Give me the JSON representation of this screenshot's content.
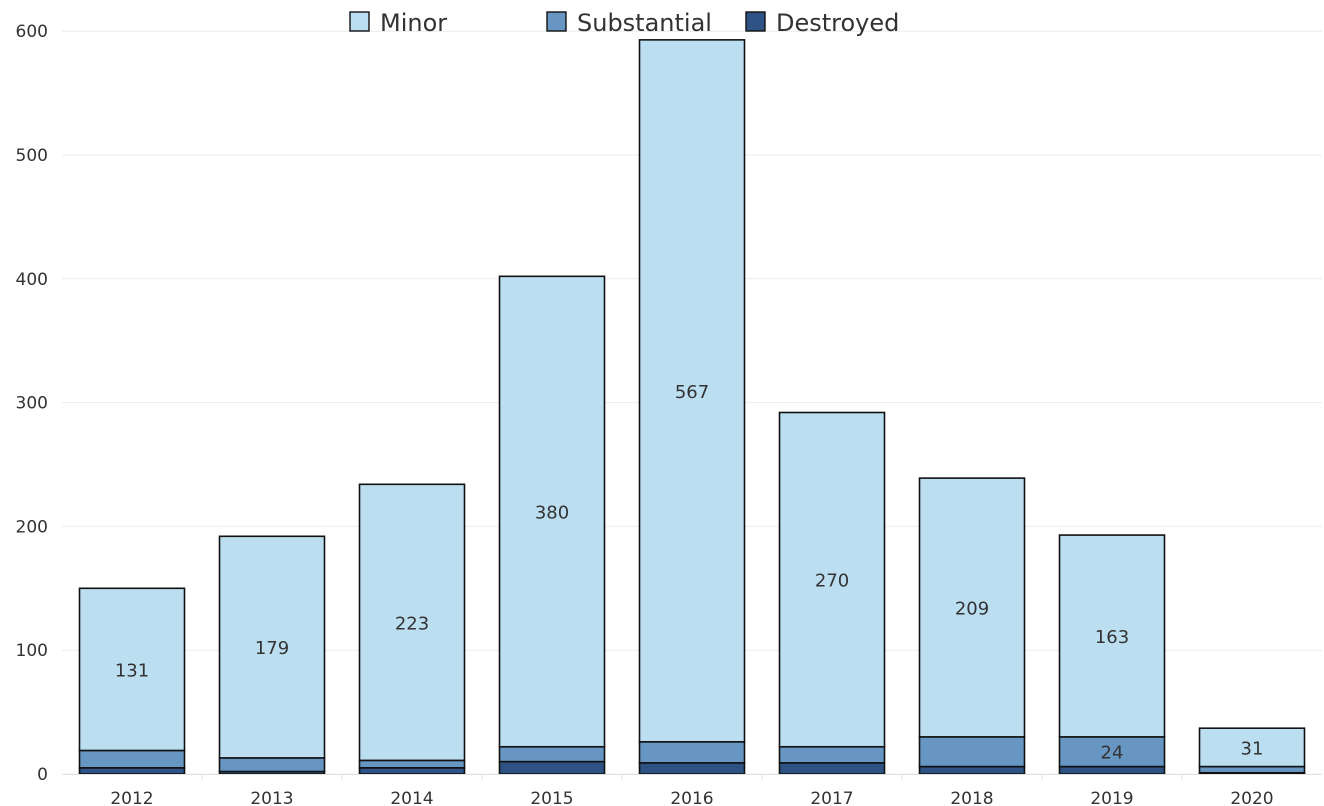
{
  "chart_data": {
    "type": "bar",
    "stacked": true,
    "categories": [
      "2012",
      "2013",
      "2014",
      "2015",
      "2016",
      "2017",
      "2018",
      "2019",
      "2020"
    ],
    "series": [
      {
        "name": "Destroyed",
        "values": [
          5,
          2,
          5,
          10,
          9,
          9,
          6,
          6,
          1
        ],
        "color": "#2e5283"
      },
      {
        "name": "Substantial",
        "values": [
          14,
          11,
          6,
          12,
          17,
          13,
          24,
          24,
          5
        ],
        "color": "#6896c2"
      },
      {
        "name": "Minor",
        "values": [
          131,
          179,
          223,
          380,
          567,
          270,
          209,
          163,
          31
        ],
        "color": "#bbdef1"
      }
    ],
    "data_labels": [
      {
        "category": "2012",
        "series": "Minor",
        "text": "131"
      },
      {
        "category": "2013",
        "series": "Minor",
        "text": "179"
      },
      {
        "category": "2014",
        "series": "Minor",
        "text": "223"
      },
      {
        "category": "2015",
        "series": "Minor",
        "text": "380"
      },
      {
        "category": "2016",
        "series": "Minor",
        "text": "567"
      },
      {
        "category": "2017",
        "series": "Minor",
        "text": "270"
      },
      {
        "category": "2018",
        "series": "Minor",
        "text": "209"
      },
      {
        "category": "2019",
        "series": "Minor",
        "text": "163"
      },
      {
        "category": "2019",
        "series": "Substantial",
        "text": "24"
      },
      {
        "category": "2020",
        "series": "Minor",
        "text": "31"
      }
    ],
    "legend": {
      "position": "top-center",
      "entries": [
        {
          "label": "Minor",
          "color": "#bbdef1"
        },
        {
          "label": "Substantial",
          "color": "#6896c2"
        },
        {
          "label": "Destroyed",
          "color": "#2e5283"
        }
      ]
    },
    "yticks": [
      0,
      100,
      200,
      300,
      400,
      500,
      600
    ],
    "ylim": [
      0,
      605
    ],
    "grid": true,
    "title": "",
    "xlabel": "",
    "ylabel": ""
  }
}
